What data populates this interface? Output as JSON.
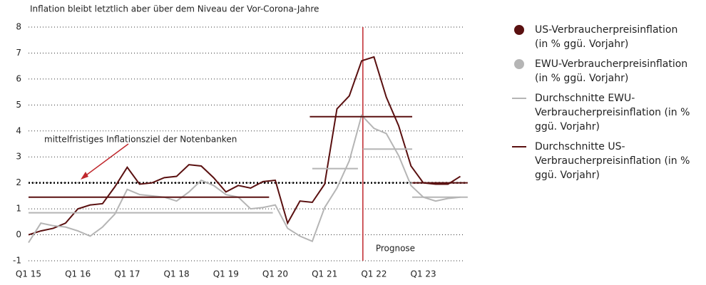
{
  "chart_data": {
    "type": "line",
    "title": "Inflation bleibt letztlich aber über dem Niveau der Vor-Corona-Jahre",
    "categories": [
      "Q1 15",
      null,
      null,
      null,
      "Q1 16",
      null,
      null,
      null,
      "Q1 17",
      null,
      null,
      null,
      "Q1 18",
      null,
      null,
      null,
      "Q1 19",
      null,
      null,
      null,
      "Q1 20",
      null,
      null,
      null,
      "Q1 21",
      null,
      null,
      null,
      "Q1 22",
      null,
      null,
      null,
      "Q1 23",
      null,
      null,
      null
    ],
    "series": [
      {
        "name": "US-Verbraucherpreisinflation (in % ggü. Vorjahr)",
        "color": "#5a1010",
        "marker": "circle",
        "values": [
          0.0,
          0.15,
          0.25,
          0.45,
          1.0,
          1.15,
          1.2,
          1.85,
          2.6,
          1.95,
          2.0,
          2.2,
          2.25,
          2.7,
          2.65,
          2.2,
          1.65,
          1.9,
          1.8,
          2.05,
          2.1,
          0.45,
          1.3,
          1.25,
          1.95,
          4.85,
          5.35,
          6.7,
          6.85,
          5.3,
          4.2,
          2.65,
          2.0,
          1.95,
          1.95,
          2.25
        ]
      },
      {
        "name": "EWU-Verbraucherpreisinflation (in % ggü. Vorjahr)",
        "color": "#b5b5b5",
        "marker": "circle",
        "values": [
          -0.3,
          0.45,
          0.35,
          0.3,
          0.15,
          -0.05,
          0.3,
          0.8,
          1.75,
          1.55,
          1.5,
          1.45,
          1.3,
          1.65,
          2.1,
          1.9,
          1.55,
          1.45,
          1.0,
          1.05,
          1.15,
          0.25,
          -0.05,
          -0.25,
          1.05,
          1.8,
          2.85,
          4.6,
          4.1,
          3.9,
          3.05,
          1.9,
          1.45,
          1.3,
          1.4,
          1.45
        ]
      },
      {
        "name": "Durchschnitte EWU-Verbraucherpreisinflation (in % ggü. Vorjahr)",
        "color": "#b5b5b5",
        "marker": "line",
        "segments": [
          {
            "start": 0,
            "end": 19.8,
            "value": 0.85
          },
          {
            "start": 23,
            "end": 26.7,
            "value": 2.55
          },
          {
            "start": 27.1,
            "end": 31.1,
            "value": 3.3
          },
          {
            "start": 31.1,
            "end": 35.6,
            "value": 1.45
          }
        ]
      },
      {
        "name": "Durchschnitte US-Verbraucherpreisinflation (in % ggü. Vorjahr)",
        "color": "#5a1010",
        "marker": "line",
        "segments": [
          {
            "start": 0,
            "end": 19.5,
            "value": 1.45
          },
          {
            "start": 22.8,
            "end": 31.1,
            "value": 4.55
          },
          {
            "start": 31.1,
            "end": 35.6,
            "value": 2.0
          }
        ]
      }
    ],
    "ylim": [
      -1,
      8
    ],
    "yticks": [
      -1,
      0,
      1,
      2,
      3,
      4,
      5,
      6,
      7,
      8
    ],
    "grid": true,
    "target_line": 2,
    "annotation": "mittelfristiges Inflationsziel der Notenbanken",
    "forecast_start": 27.1,
    "forecast_label": "Prognose",
    "forecast_color": "#c0282d"
  }
}
